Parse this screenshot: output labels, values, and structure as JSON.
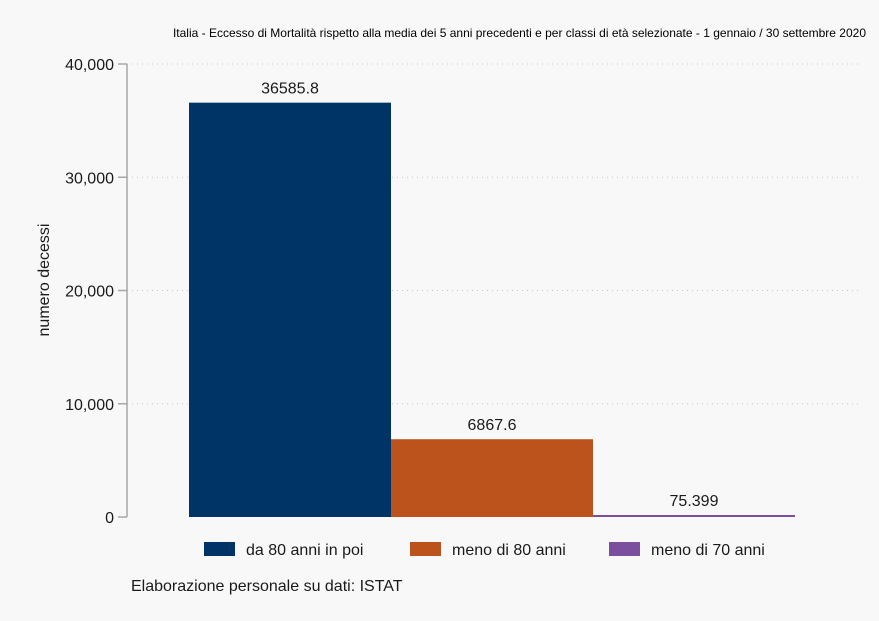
{
  "chart_data": {
    "type": "bar",
    "title": "Italia - Eccesso di Mortalità rispetto alla media dei 5 anni precedenti e per classi di età selezionate - 1 gennaio / 30 settembre 2020",
    "ylabel": "numero decessi",
    "xlabel": "",
    "ylim": [
      0,
      40000
    ],
    "yticks": [
      0,
      10000,
      20000,
      30000,
      40000
    ],
    "ytick_labels": [
      "0",
      "10,000",
      "20,000",
      "30,000",
      "40,000"
    ],
    "grid": true,
    "legend_position": "bottom",
    "series": [
      {
        "name": "da 80 anni in poi",
        "value": 36585.8,
        "label": "36585.8",
        "color": "#003366"
      },
      {
        "name": "meno di 80 anni",
        "value": 6867.6,
        "label": "6867.6",
        "color": "#bd531c"
      },
      {
        "name": "meno di 70 anni",
        "value": 75.399,
        "label": "75.399",
        "color": "#7b4e9e"
      }
    ]
  },
  "caption": "Elaborazione personale su dati: ISTAT"
}
